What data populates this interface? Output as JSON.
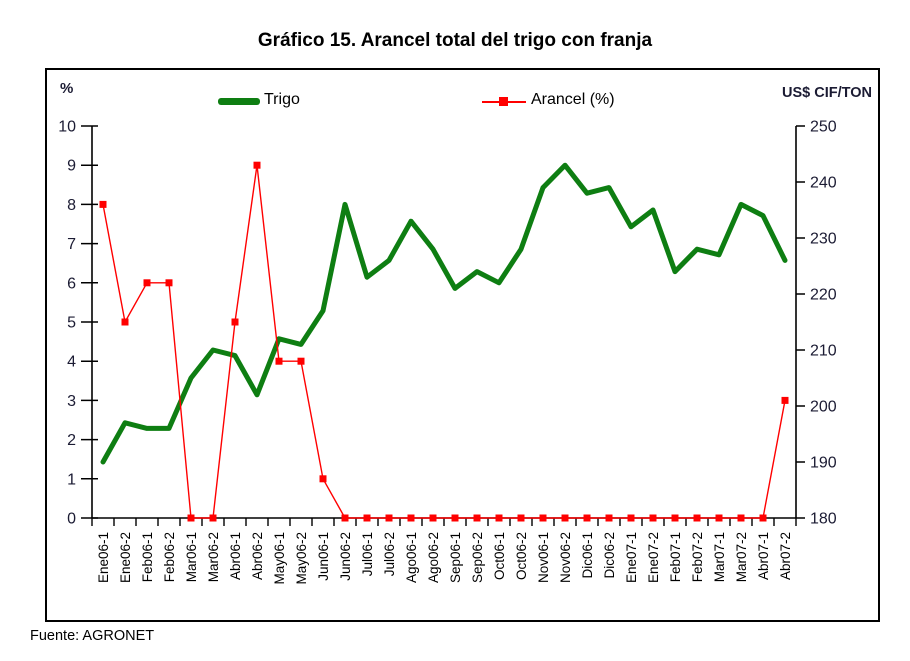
{
  "chart_title": "Gráfico 15. Arancel total del trigo con franja",
  "source_note": "Fuente: AGRONET",
  "legend": {
    "trigo_label": "Trigo",
    "arancel_label": "Arancel (%)"
  },
  "axis_units": {
    "left": "%",
    "right": "US$ CIF/TON"
  },
  "colors": {
    "trigo": "#0e7e12",
    "arancel": "#ff0000",
    "axis": "#000000"
  },
  "chart_data": {
    "type": "line",
    "title": "Gráfico 15. Arancel total del trigo con franja",
    "grid": false,
    "legend_position": "top-inside",
    "categories": [
      "Ene06-1",
      "Ene06-2",
      "Feb06-1",
      "Feb06-2",
      "Mar06-1",
      "Mar06-2",
      "Abr06-1",
      "Abr06-2",
      "May06-1",
      "May06-2",
      "Jun06-1",
      "Jun06-2",
      "Jul06-1",
      "Jul06-2",
      "Ago06-1",
      "Ago06-2",
      "Sep06-1",
      "Sep06-2",
      "Oct06-1",
      "Oct06-2",
      "Nov06-1",
      "Nov06-2",
      "Dic06-1",
      "Dic06-2",
      "Ene07-1",
      "Ene07-2",
      "Feb07-1",
      "Feb07-2",
      "Mar07-1",
      "Mar07-2",
      "Abr07-1",
      "Abr07-2"
    ],
    "left_axis": {
      "label": "%",
      "min": 0,
      "max": 10,
      "step": 1
    },
    "right_axis": {
      "label": "US$ CIF/TON",
      "min": 180,
      "max": 250,
      "step": 10
    },
    "series": [
      {
        "name": "Trigo",
        "axis": "right",
        "style": "thick-line",
        "marker": "none",
        "values": [
          190,
          197,
          196,
          196,
          205,
          210,
          209,
          202,
          212,
          211,
          217,
          236,
          223,
          226,
          233,
          228,
          221,
          224,
          222,
          228,
          239,
          243,
          238,
          239,
          232,
          235,
          224,
          228,
          227,
          236,
          234,
          226
        ]
      },
      {
        "name": "Arancel (%)",
        "axis": "left",
        "style": "thin-line",
        "marker": "square",
        "values": [
          8,
          5,
          6,
          6,
          0,
          0,
          5,
          9,
          4,
          4,
          1,
          0,
          0,
          0,
          0,
          0,
          0,
          0,
          0,
          0,
          0,
          0,
          0,
          0,
          0,
          0,
          0,
          0,
          0,
          0,
          0,
          3
        ]
      }
    ]
  }
}
